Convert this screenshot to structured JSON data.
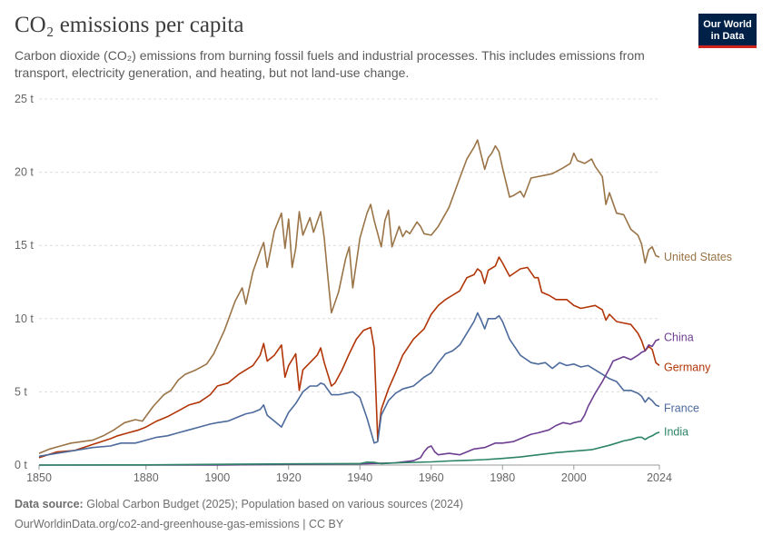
{
  "header": {
    "title": "CO₂ emissions per capita",
    "subtitle": "Carbon dioxide (CO₂) emissions from burning fossil fuels and industrial processes. This includes emissions from transport, electricity generation, and heating, but not land-use change.",
    "logo_line1": "Our World",
    "logo_line2": "in Data"
  },
  "footer": {
    "source_label": "Data source:",
    "source_text": "Global Carbon Budget (2025); Population based on various sources (2024)",
    "url_text": "OurWorldinData.org/co2-and-greenhouse-gas-emissions | CC BY"
  },
  "colors": {
    "logo_bg": "#002147",
    "logo_accent": "#ce261e",
    "grid": "#dddddd",
    "axis": "#999999"
  },
  "chart_data": {
    "type": "line",
    "title": "CO₂ emissions per capita",
    "xlabel": "",
    "ylabel": "",
    "xlim": [
      1850,
      2024
    ],
    "ylim": [
      0,
      25
    ],
    "x_ticks": [
      "1850",
      "1880",
      "1900",
      "1920",
      "1940",
      "1960",
      "1980",
      "2000",
      "2024"
    ],
    "y_ticks": [
      "0 t",
      "5 t",
      "10 t",
      "15 t",
      "20 t",
      "25 t"
    ],
    "grid": true,
    "legend_placement": "right-inline",
    "series": [
      {
        "name": "United States",
        "color": "#9a7447",
        "x": [
          1850,
          1853,
          1856,
          1859,
          1862,
          1865,
          1868,
          1871,
          1874,
          1877,
          1879,
          1882,
          1885,
          1887,
          1889,
          1891,
          1894,
          1897,
          1899,
          1902,
          1905,
          1907,
          1908,
          1910,
          1912,
          1913,
          1914,
          1916,
          1918,
          1919,
          1920,
          1921,
          1922,
          1923,
          1924,
          1926,
          1927,
          1929,
          1930,
          1931,
          1932,
          1934,
          1936,
          1937,
          1938,
          1940,
          1942,
          1943,
          1944,
          1945,
          1946,
          1947,
          1948,
          1949,
          1951,
          1952,
          1953,
          1954,
          1956,
          1957,
          1958,
          1960,
          1962,
          1965,
          1968,
          1970,
          1972,
          1973,
          1974,
          1975,
          1976,
          1977,
          1978,
          1979,
          1980,
          1982,
          1983,
          1985,
          1986,
          1988,
          1990,
          1992,
          1994,
          1997,
          1999,
          2000,
          2001,
          2003,
          2005,
          2006,
          2008,
          2009,
          2010,
          2012,
          2014,
          2016,
          2018,
          2019,
          2020,
          2021,
          2022,
          2023,
          2024
        ],
        "values": [
          0.8,
          1.1,
          1.3,
          1.5,
          1.6,
          1.7,
          2.0,
          2.4,
          2.9,
          3.1,
          3.0,
          4.0,
          4.8,
          5.1,
          5.8,
          6.2,
          6.5,
          6.9,
          7.6,
          9.2,
          11.2,
          12.1,
          11.0,
          13.2,
          14.6,
          15.2,
          13.5,
          16.0,
          17.2,
          14.8,
          16.8,
          13.5,
          14.8,
          17.3,
          15.7,
          16.9,
          15.9,
          17.3,
          15.5,
          12.9,
          10.4,
          11.8,
          14.1,
          14.9,
          12.1,
          15.5,
          17.2,
          17.8,
          16.7,
          15.8,
          14.9,
          16.7,
          17.4,
          14.9,
          16.3,
          15.6,
          16.0,
          15.8,
          16.6,
          16.3,
          15.8,
          15.7,
          16.3,
          17.6,
          19.6,
          20.9,
          21.7,
          22.2,
          21.2,
          20.2,
          21.0,
          21.3,
          21.8,
          21.4,
          20.3,
          18.3,
          18.4,
          18.7,
          18.3,
          19.6,
          19.7,
          19.8,
          19.9,
          20.3,
          20.6,
          21.3,
          20.8,
          20.6,
          20.9,
          20.4,
          19.7,
          17.8,
          18.6,
          17.2,
          17.1,
          16.1,
          15.7,
          15.1,
          13.8,
          14.7,
          14.9,
          14.3,
          14.2
        ]
      },
      {
        "name": "Germany",
        "color": "#b13507",
        "x": [
          1850,
          1855,
          1860,
          1865,
          1870,
          1872,
          1875,
          1878,
          1880,
          1883,
          1886,
          1889,
          1892,
          1895,
          1898,
          1900,
          1903,
          1906,
          1908,
          1910,
          1912,
          1913,
          1914,
          1916,
          1918,
          1919,
          1920,
          1922,
          1923,
          1924,
          1926,
          1928,
          1929,
          1930,
          1932,
          1933,
          1935,
          1937,
          1939,
          1941,
          1943,
          1944,
          1945,
          1946,
          1948,
          1950,
          1952,
          1955,
          1958,
          1960,
          1962,
          1964,
          1966,
          1968,
          1970,
          1972,
          1973,
          1974,
          1975,
          1976,
          1978,
          1979,
          1980,
          1982,
          1985,
          1987,
          1989,
          1990,
          1991,
          1993,
          1995,
          1998,
          2000,
          2002,
          2004,
          2006,
          2008,
          2009,
          2010,
          2012,
          2014,
          2016,
          2018,
          2019,
          2020,
          2021,
          2022,
          2023,
          2024
        ],
        "values": [
          0.5,
          0.9,
          1.0,
          1.4,
          1.8,
          2.0,
          2.2,
          2.4,
          2.6,
          3.0,
          3.3,
          3.7,
          4.1,
          4.3,
          4.8,
          5.4,
          5.6,
          6.2,
          6.5,
          6.8,
          7.5,
          8.3,
          7.1,
          7.5,
          8.2,
          6.0,
          6.8,
          7.6,
          5.1,
          6.5,
          7.0,
          7.5,
          8.0,
          7.0,
          5.4,
          5.6,
          6.5,
          7.6,
          8.6,
          9.2,
          9.4,
          8.0,
          1.7,
          3.8,
          5.2,
          6.3,
          7.5,
          8.6,
          9.3,
          10.3,
          10.9,
          11.3,
          11.6,
          11.9,
          12.8,
          13.0,
          13.4,
          13.2,
          12.4,
          13.3,
          13.6,
          14.2,
          13.8,
          12.9,
          13.4,
          13.5,
          12.8,
          12.8,
          11.8,
          11.6,
          11.3,
          11.3,
          10.9,
          10.7,
          10.8,
          10.9,
          10.6,
          9.9,
          10.3,
          9.8,
          9.7,
          9.6,
          9.0,
          8.5,
          7.8,
          8.1,
          7.9,
          7.0,
          6.8
        ]
      },
      {
        "name": "France",
        "color": "#4c6a9c",
        "x": [
          1850,
          1855,
          1860,
          1865,
          1870,
          1873,
          1877,
          1880,
          1883,
          1886,
          1889,
          1892,
          1895,
          1898,
          1900,
          1903,
          1906,
          1908,
          1910,
          1912,
          1913,
          1914,
          1916,
          1918,
          1920,
          1922,
          1924,
          1926,
          1928,
          1929,
          1930,
          1932,
          1934,
          1936,
          1938,
          1940,
          1942,
          1944,
          1945,
          1946,
          1948,
          1950,
          1952,
          1955,
          1958,
          1960,
          1962,
          1964,
          1966,
          1968,
          1970,
          1972,
          1973,
          1974,
          1975,
          1976,
          1978,
          1979,
          1980,
          1982,
          1985,
          1988,
          1990,
          1992,
          1994,
          1996,
          1998,
          2000,
          2002,
          2004,
          2006,
          2008,
          2010,
          2012,
          2014,
          2016,
          2018,
          2019,
          2020,
          2021,
          2022,
          2023,
          2024
        ],
        "values": [
          0.6,
          0.8,
          1.0,
          1.2,
          1.3,
          1.5,
          1.5,
          1.7,
          1.9,
          2.0,
          2.2,
          2.4,
          2.6,
          2.8,
          2.9,
          3.0,
          3.3,
          3.5,
          3.6,
          3.8,
          4.1,
          3.4,
          3.0,
          2.6,
          3.6,
          4.2,
          5.0,
          5.4,
          5.4,
          5.6,
          5.5,
          4.8,
          4.8,
          4.9,
          5.0,
          4.6,
          3.2,
          1.5,
          1.6,
          3.4,
          4.4,
          4.9,
          5.2,
          5.4,
          6.0,
          6.3,
          7.0,
          7.6,
          7.8,
          8.2,
          9.0,
          9.8,
          10.4,
          9.9,
          9.3,
          10.0,
          10.0,
          10.2,
          9.8,
          8.6,
          7.5,
          7.0,
          6.9,
          7.0,
          6.6,
          7.0,
          6.8,
          6.9,
          6.7,
          6.8,
          6.5,
          6.2,
          5.9,
          5.7,
          5.1,
          5.1,
          4.9,
          4.7,
          4.3,
          4.6,
          4.4,
          4.1,
          4.0
        ]
      },
      {
        "name": "China",
        "color": "#6d3e91",
        "x": [
          1850,
          1900,
          1920,
          1940,
          1950,
          1955,
          1957,
          1958,
          1959,
          1960,
          1961,
          1962,
          1965,
          1968,
          1970,
          1972,
          1975,
          1978,
          1980,
          1983,
          1985,
          1988,
          1990,
          1993,
          1995,
          1997,
          1999,
          2000,
          2002,
          2003,
          2004,
          2006,
          2008,
          2010,
          2011,
          2012,
          2014,
          2016,
          2018,
          2019,
          2020,
          2021,
          2022,
          2023,
          2024
        ],
        "values": [
          0.0,
          0.0,
          0.05,
          0.08,
          0.15,
          0.3,
          0.5,
          0.9,
          1.2,
          1.3,
          0.9,
          0.7,
          0.8,
          0.7,
          0.9,
          1.1,
          1.2,
          1.5,
          1.5,
          1.6,
          1.8,
          2.1,
          2.2,
          2.4,
          2.7,
          2.9,
          2.8,
          2.9,
          3.0,
          3.4,
          4.0,
          4.9,
          5.7,
          6.6,
          7.1,
          7.2,
          7.4,
          7.2,
          7.5,
          7.7,
          7.8,
          8.2,
          8.1,
          8.5,
          8.6
        ]
      },
      {
        "name": "India",
        "color": "#2c8465",
        "x": [
          1850,
          1880,
          1900,
          1920,
          1940,
          1942,
          1944,
          1946,
          1950,
          1960,
          1965,
          1970,
          1975,
          1980,
          1985,
          1990,
          1995,
          2000,
          2005,
          2010,
          2012,
          2014,
          2016,
          2018,
          2019,
          2020,
          2021,
          2022,
          2023,
          2024
        ],
        "values": [
          0.0,
          0.01,
          0.05,
          0.08,
          0.1,
          0.2,
          0.18,
          0.1,
          0.15,
          0.22,
          0.28,
          0.32,
          0.37,
          0.45,
          0.55,
          0.7,
          0.85,
          0.95,
          1.05,
          1.35,
          1.5,
          1.65,
          1.75,
          1.9,
          1.9,
          1.75,
          1.9,
          2.0,
          2.15,
          2.25
        ]
      }
    ]
  }
}
